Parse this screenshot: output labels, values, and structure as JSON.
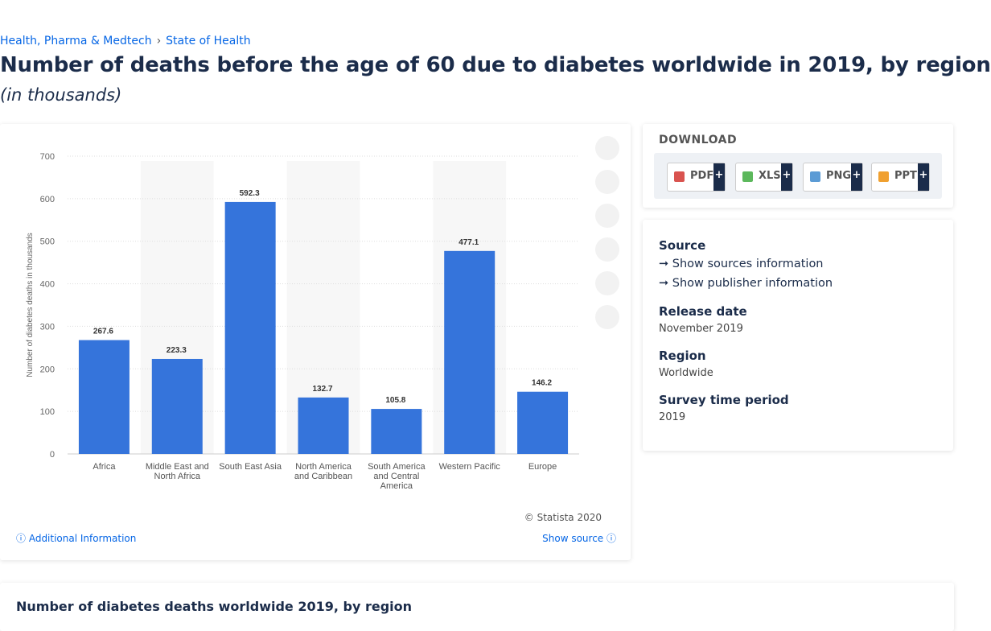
{
  "breadcrumb": [
    "Health, Pharma & Medtech",
    "State of Health"
  ],
  "title": "Number of deaths before the age of 60 due to diabetes worldwide in 2019, by region",
  "subtitle": "(in thousands)",
  "chart_data": {
    "type": "bar",
    "y_label": "Number of diabetes deaths in thousands",
    "categories": [
      "Africa",
      "Middle East and North Africa",
      "South East Asia",
      "North America and Caribbean",
      "South America and Central America",
      "Western Pacific",
      "Europe"
    ],
    "values": [
      267.6,
      223.3,
      592.3,
      132.7,
      105.8,
      477.1,
      146.2
    ],
    "color": "#3574db",
    "ylim": [
      0,
      700
    ],
    "yticks": [
      0,
      100,
      200,
      300,
      400,
      500,
      600,
      700
    ],
    "grid": true,
    "copyright": "© Statista 2020"
  },
  "chart_footer": {
    "additional_info": "Additional Information",
    "show_source": "Show source"
  },
  "download": {
    "heading": "DOWNLOAD",
    "buttons": [
      "PDF",
      "XLS",
      "PNG",
      "PPT"
    ],
    "plus": "+"
  },
  "details": {
    "source_label": "Source",
    "links": [
      "Show sources information",
      "Show publisher information"
    ],
    "fields": [
      {
        "label": "Release date",
        "value": "November 2019"
      },
      {
        "label": "Region",
        "value": "Worldwide"
      },
      {
        "label": "Survey time period",
        "value": "2019"
      }
    ]
  },
  "next_heading": "Number of diabetes deaths worldwide 2019, by region"
}
